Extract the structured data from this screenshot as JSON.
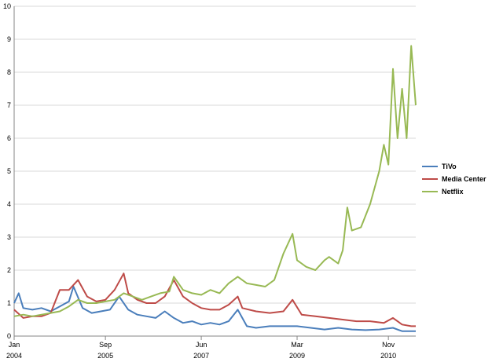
{
  "chart_data": {
    "type": "line",
    "xlabel": "",
    "ylabel": "",
    "ylim": [
      0,
      10
    ],
    "yticks": [
      0,
      1,
      2,
      3,
      4,
      5,
      6,
      7,
      8,
      9,
      10
    ],
    "xlim": [
      "2004-01",
      "2011-05"
    ],
    "xticks": [
      {
        "x": "2004-01",
        "month": "Jan",
        "year": "2004"
      },
      {
        "x": "2005-09",
        "month": "Sep",
        "year": "2005"
      },
      {
        "x": "2007-06",
        "month": "Jun",
        "year": "2007"
      },
      {
        "x": "2009-03",
        "month": "Mar",
        "year": "2009"
      },
      {
        "x": "2010-11",
        "month": "Nov",
        "year": "2010"
      }
    ],
    "grid": "horizontal",
    "legend": "right",
    "series": [
      {
        "name": "TiVo",
        "color": "#4a7ebb",
        "points": [
          [
            "2004-01",
            1.0
          ],
          [
            "2004-02",
            1.3
          ],
          [
            "2004-03",
            0.85
          ],
          [
            "2004-05",
            0.8
          ],
          [
            "2004-07",
            0.85
          ],
          [
            "2004-09",
            0.75
          ],
          [
            "2004-11",
            0.9
          ],
          [
            "2005-01",
            1.05
          ],
          [
            "2005-02",
            1.5
          ],
          [
            "2005-04",
            0.85
          ],
          [
            "2005-06",
            0.7
          ],
          [
            "2005-08",
            0.75
          ],
          [
            "2005-10",
            0.8
          ],
          [
            "2005-12",
            1.2
          ],
          [
            "2006-02",
            0.8
          ],
          [
            "2006-04",
            0.65
          ],
          [
            "2006-06",
            0.6
          ],
          [
            "2006-08",
            0.55
          ],
          [
            "2006-10",
            0.75
          ],
          [
            "2006-12",
            0.55
          ],
          [
            "2007-02",
            0.4
          ],
          [
            "2007-04",
            0.45
          ],
          [
            "2007-06",
            0.35
          ],
          [
            "2007-08",
            0.4
          ],
          [
            "2007-10",
            0.35
          ],
          [
            "2007-12",
            0.45
          ],
          [
            "2008-02",
            0.8
          ],
          [
            "2008-04",
            0.3
          ],
          [
            "2008-06",
            0.25
          ],
          [
            "2008-09",
            0.3
          ],
          [
            "2008-12",
            0.3
          ],
          [
            "2009-03",
            0.3
          ],
          [
            "2009-06",
            0.25
          ],
          [
            "2009-09",
            0.2
          ],
          [
            "2009-12",
            0.25
          ],
          [
            "2010-03",
            0.2
          ],
          [
            "2010-06",
            0.18
          ],
          [
            "2010-09",
            0.2
          ],
          [
            "2010-12",
            0.25
          ],
          [
            "2011-02",
            0.15
          ],
          [
            "2011-04",
            0.15
          ],
          [
            "2011-05",
            0.15
          ]
        ]
      },
      {
        "name": "Media Center",
        "color": "#be4b48",
        "points": [
          [
            "2004-01",
            0.8
          ],
          [
            "2004-03",
            0.55
          ],
          [
            "2004-05",
            0.6
          ],
          [
            "2004-07",
            0.6
          ],
          [
            "2004-09",
            0.7
          ],
          [
            "2004-11",
            1.4
          ],
          [
            "2005-01",
            1.4
          ],
          [
            "2005-03",
            1.7
          ],
          [
            "2005-05",
            1.2
          ],
          [
            "2005-07",
            1.05
          ],
          [
            "2005-09",
            1.1
          ],
          [
            "2005-11",
            1.4
          ],
          [
            "2006-01",
            1.9
          ],
          [
            "2006-02",
            1.3
          ],
          [
            "2006-04",
            1.1
          ],
          [
            "2006-06",
            1.0
          ],
          [
            "2006-08",
            1.0
          ],
          [
            "2006-10",
            1.2
          ],
          [
            "2006-12",
            1.7
          ],
          [
            "2007-02",
            1.2
          ],
          [
            "2007-04",
            1.0
          ],
          [
            "2007-06",
            0.85
          ],
          [
            "2007-08",
            0.8
          ],
          [
            "2007-10",
            0.8
          ],
          [
            "2007-12",
            0.95
          ],
          [
            "2008-02",
            1.2
          ],
          [
            "2008-03",
            0.85
          ],
          [
            "2008-06",
            0.75
          ],
          [
            "2008-09",
            0.7
          ],
          [
            "2008-12",
            0.75
          ],
          [
            "2009-02",
            1.1
          ],
          [
            "2009-04",
            0.65
          ],
          [
            "2009-07",
            0.6
          ],
          [
            "2009-10",
            0.55
          ],
          [
            "2010-01",
            0.5
          ],
          [
            "2010-04",
            0.45
          ],
          [
            "2010-07",
            0.45
          ],
          [
            "2010-10",
            0.4
          ],
          [
            "2010-12",
            0.55
          ],
          [
            "2011-02",
            0.35
          ],
          [
            "2011-04",
            0.3
          ],
          [
            "2011-05",
            0.3
          ]
        ]
      },
      {
        "name": "Netflix",
        "color": "#98b954",
        "points": [
          [
            "2004-01",
            0.6
          ],
          [
            "2004-03",
            0.65
          ],
          [
            "2004-05",
            0.6
          ],
          [
            "2004-07",
            0.65
          ],
          [
            "2004-09",
            0.7
          ],
          [
            "2004-11",
            0.75
          ],
          [
            "2005-01",
            0.9
          ],
          [
            "2005-03",
            1.1
          ],
          [
            "2005-05",
            1.0
          ],
          [
            "2005-07",
            1.0
          ],
          [
            "2005-09",
            1.05
          ],
          [
            "2005-11",
            1.1
          ],
          [
            "2006-01",
            1.3
          ],
          [
            "2006-03",
            1.2
          ],
          [
            "2006-05",
            1.1
          ],
          [
            "2006-07",
            1.2
          ],
          [
            "2006-09",
            1.3
          ],
          [
            "2006-11",
            1.35
          ],
          [
            "2006-12",
            1.8
          ],
          [
            "2007-02",
            1.4
          ],
          [
            "2007-04",
            1.3
          ],
          [
            "2007-06",
            1.25
          ],
          [
            "2007-08",
            1.4
          ],
          [
            "2007-10",
            1.3
          ],
          [
            "2007-12",
            1.6
          ],
          [
            "2008-02",
            1.8
          ],
          [
            "2008-04",
            1.6
          ],
          [
            "2008-06",
            1.55
          ],
          [
            "2008-08",
            1.5
          ],
          [
            "2008-10",
            1.7
          ],
          [
            "2008-12",
            2.5
          ],
          [
            "2009-02",
            3.1
          ],
          [
            "2009-03",
            2.3
          ],
          [
            "2009-05",
            2.1
          ],
          [
            "2009-07",
            2.0
          ],
          [
            "2009-09",
            2.3
          ],
          [
            "2009-10",
            2.4
          ],
          [
            "2009-12",
            2.2
          ],
          [
            "2010-01",
            2.6
          ],
          [
            "2010-02",
            3.9
          ],
          [
            "2010-03",
            3.2
          ],
          [
            "2010-05",
            3.3
          ],
          [
            "2010-07",
            4.0
          ],
          [
            "2010-09",
            5.0
          ],
          [
            "2010-10",
            5.8
          ],
          [
            "2010-11",
            5.2
          ],
          [
            "2010-12",
            8.1
          ],
          [
            "2011-01",
            6.0
          ],
          [
            "2011-02",
            7.5
          ],
          [
            "2011-03",
            6.0
          ],
          [
            "2011-04",
            8.8
          ],
          [
            "2011-05",
            7.0
          ]
        ]
      }
    ]
  }
}
